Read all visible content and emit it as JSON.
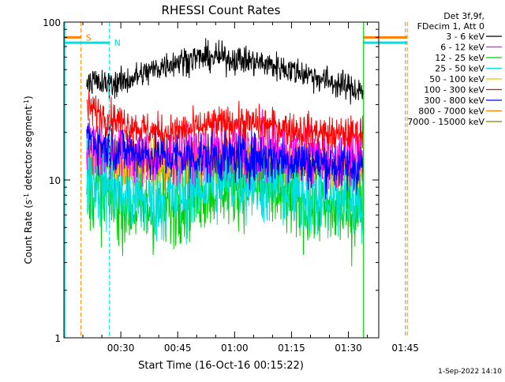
{
  "chart_data": {
    "type": "line",
    "title": "RHESSI Count Rates",
    "xlabel": "Start Time (16-Oct-16 00:15:22)",
    "ylabel_parts": [
      "Count Rate (s",
      "-1",
      " detector segment",
      "-1",
      ")"
    ],
    "yscale": "log",
    "ylim": [
      1,
      100
    ],
    "xlim_min": [
      0,
      83
    ],
    "y_tick_labels": [
      {
        "value": 1,
        "label": "1"
      },
      {
        "value": 10,
        "label": "10"
      },
      {
        "value": 100,
        "label": "100"
      }
    ],
    "x_tick_labels": [
      {
        "value": 15,
        "label": "00:30"
      },
      {
        "value": 30,
        "label": "00:45"
      },
      {
        "value": 45,
        "label": "01:00"
      },
      {
        "value": 60,
        "label": "01:15"
      },
      {
        "value": 75,
        "label": "01:30"
      },
      {
        "value": 90,
        "label": "01:45"
      }
    ],
    "legend_header": [
      "Det 3f,9f,",
      "FDecim 1, Att 0"
    ],
    "legend_position": "top-right, outside plot",
    "data_x_range_min": [
      6,
      79
    ],
    "series": [
      {
        "name": "3 - 6 keV",
        "color": "#000000",
        "x": [
          6,
          10,
          16,
          22,
          28,
          34,
          40,
          46,
          52,
          58,
          64,
          70,
          76,
          79
        ],
        "y": [
          44,
          40,
          42,
          48,
          55,
          59,
          60,
          58,
          55,
          51,
          47,
          42,
          38,
          37
        ]
      },
      {
        "name": "6 - 12 keV",
        "color": "#ff00ff",
        "x": [
          6,
          10,
          16,
          22,
          28,
          34,
          40,
          46,
          52,
          58,
          64,
          70,
          76,
          79
        ],
        "y": [
          17,
          15.5,
          14.5,
          14,
          14,
          14.5,
          15,
          15.5,
          15.5,
          15,
          14.5,
          14,
          13.5,
          14
        ]
      },
      {
        "name": "12 - 25 keV",
        "color": "#00d000",
        "x": [
          6,
          10,
          16,
          22,
          28,
          34,
          40,
          46,
          52,
          58,
          64,
          70,
          76,
          79
        ],
        "y": [
          9.5,
          8.2,
          7,
          6.4,
          6.8,
          8,
          9.2,
          9.7,
          9,
          8,
          7,
          6.5,
          6.4,
          6.8
        ]
      },
      {
        "name": "25 - 50 keV",
        "color": "#00e0e0",
        "x": [
          6,
          10,
          16,
          22,
          28,
          34,
          40,
          46,
          52,
          58,
          64,
          70,
          76,
          79
        ],
        "y": [
          10.5,
          9.2,
          7.8,
          7.2,
          7.5,
          8.6,
          9.8,
          10,
          9.6,
          8.8,
          8,
          7.5,
          7.2,
          7.6
        ]
      },
      {
        "name": "50 - 100 keV",
        "color": "#e8c800",
        "x": [
          6,
          10,
          16,
          22,
          28,
          34,
          40,
          46,
          52,
          58,
          64,
          70,
          76,
          79
        ],
        "y": [
          14,
          12.8,
          12.2,
          12,
          12,
          12.5,
          13,
          13,
          12.8,
          12.3,
          11.8,
          11.5,
          11.2,
          11.5
        ]
      },
      {
        "name": "100 - 300 keV",
        "color": "#ff0000",
        "x": [
          6,
          10,
          16,
          22,
          28,
          34,
          40,
          46,
          52,
          58,
          64,
          70,
          76,
          79
        ],
        "y": [
          29,
          26,
          23,
          20.5,
          20,
          21,
          22.5,
          23,
          22.5,
          21.5,
          20.5,
          19.5,
          19.5,
          20
        ]
      },
      {
        "name": "300 - 800 keV",
        "color": "#0000ff",
        "x": [
          6,
          10,
          16,
          22,
          28,
          34,
          40,
          46,
          52,
          58,
          64,
          70,
          76,
          79
        ],
        "y": [
          19,
          17,
          15.5,
          14.5,
          14,
          14,
          14,
          14,
          13.8,
          13.5,
          13,
          12.5,
          12,
          12.5
        ]
      },
      {
        "name": "800 - 7000 keV",
        "color": "#ff8000",
        "x": [
          6,
          10,
          16,
          22,
          28,
          34,
          40,
          46,
          52,
          58,
          64,
          70,
          76,
          79
        ],
        "y": [
          15,
          13.5,
          12.7,
          12.3,
          12.2,
          12.4,
          12.8,
          13,
          12.8,
          12.4,
          12,
          11.5,
          11,
          11.2
        ]
      },
      {
        "name": "7000 - 15000 keV",
        "color": "#808000",
        "x": [
          6,
          10,
          16,
          22,
          28,
          34,
          40,
          46,
          52,
          58,
          64,
          70,
          76,
          79
        ],
        "y": [
          12,
          11.3,
          11,
          10.8,
          10.8,
          11,
          11.2,
          11.2,
          11,
          10.8,
          10.5,
          10.3,
          10.2,
          10.4
        ]
      }
    ],
    "markers": [
      {
        "label": "S",
        "color": "#ff8000",
        "bar_min": [
          0,
          4.5
        ],
        "bar2_min": [
          79,
          90.5
        ],
        "line_min": [
          4.5,
          90.5
        ],
        "bar_y": 80
      },
      {
        "label": "N",
        "color": "#00e0e0",
        "bar_min": [
          0,
          12
        ],
        "bar2_min": [
          79,
          90.5
        ],
        "line_min": [
          12,
          90
        ],
        "bar_y": 74
      }
    ],
    "vertical_line_min": 79,
    "vertical_line_color": "#00d000",
    "grid": false
  },
  "footer": {
    "timestamp": "1-Sep-2022 14:10"
  }
}
